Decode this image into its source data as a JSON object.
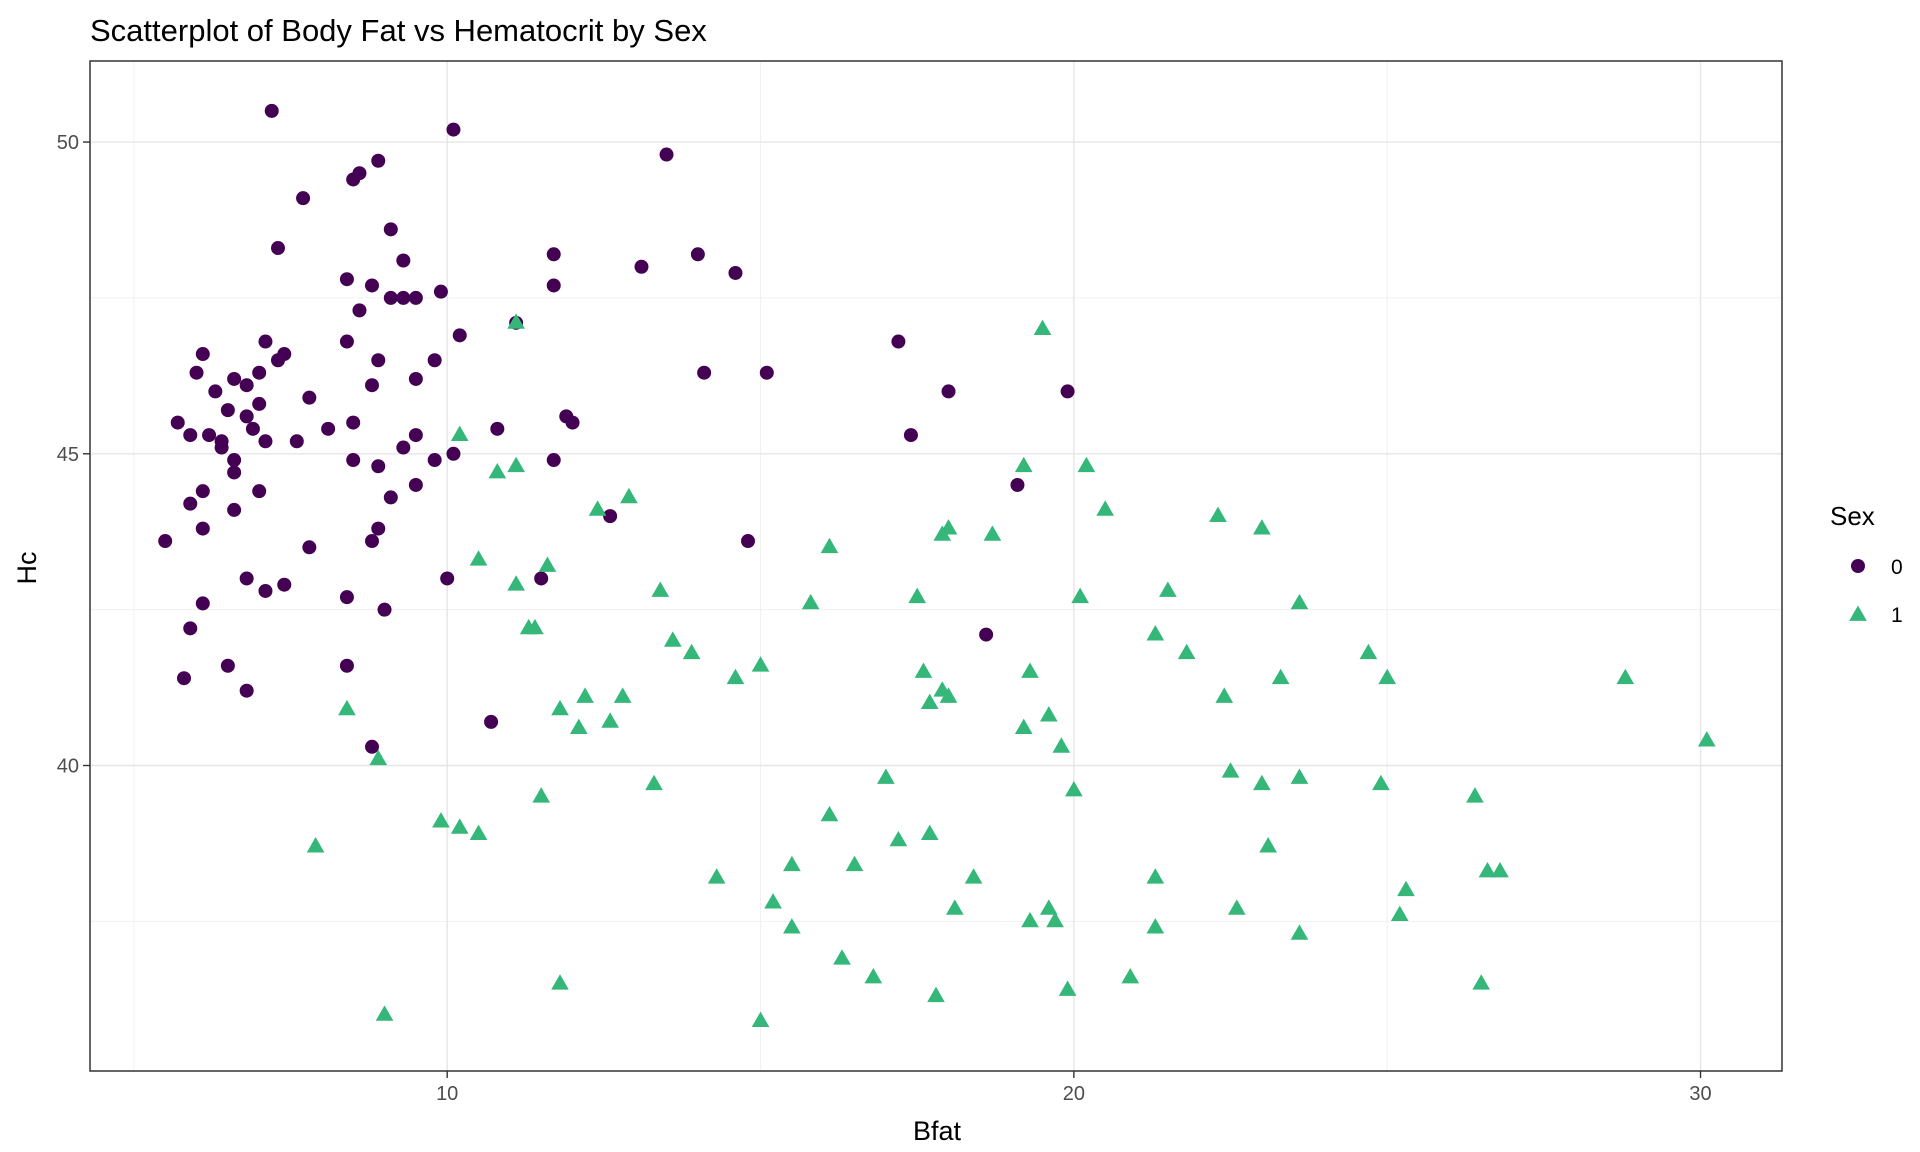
{
  "chart_data": {
    "type": "scatter",
    "title": "Scatterplot of Body Fat vs Hematocrit by Sex",
    "xlabel": "Bfat",
    "ylabel": "Hc",
    "xlim": [
      4.3,
      31.3
    ],
    "ylim": [
      35.1,
      51.3
    ],
    "xticks": [
      10,
      20,
      30
    ],
    "yticks": [
      40,
      45,
      50
    ],
    "xtick_labels": [
      "10",
      "20",
      "30"
    ],
    "ytick_labels": [
      "40",
      "45",
      "50"
    ],
    "grid": true,
    "legend": {
      "title": "Sex",
      "position": "right"
    },
    "series": [
      {
        "name": "0",
        "marker": "circle",
        "color": "#440154",
        "points": [
          [
            7.2,
            50.5
          ],
          [
            10.1,
            50.2
          ],
          [
            13.5,
            49.8
          ],
          [
            8.9,
            49.7
          ],
          [
            8.6,
            49.5
          ],
          [
            8.5,
            49.4
          ],
          [
            7.7,
            49.1
          ],
          [
            9.1,
            48.6
          ],
          [
            7.3,
            48.3
          ],
          [
            11.7,
            48.2
          ],
          [
            14.0,
            48.2
          ],
          [
            9.3,
            48.1
          ],
          [
            13.1,
            48.0
          ],
          [
            14.6,
            47.9
          ],
          [
            8.4,
            47.8
          ],
          [
            8.8,
            47.7
          ],
          [
            11.7,
            47.7
          ],
          [
            9.9,
            47.6
          ],
          [
            9.1,
            47.5
          ],
          [
            9.3,
            47.5
          ],
          [
            9.5,
            47.5
          ],
          [
            8.6,
            47.3
          ],
          [
            11.1,
            47.1
          ],
          [
            10.2,
            46.9
          ],
          [
            8.4,
            46.8
          ],
          [
            7.1,
            46.8
          ],
          [
            17.2,
            46.8
          ],
          [
            6.1,
            46.6
          ],
          [
            7.4,
            46.6
          ],
          [
            7.3,
            46.5
          ],
          [
            8.9,
            46.5
          ],
          [
            9.8,
            46.5
          ],
          [
            6.0,
            46.3
          ],
          [
            7.0,
            46.3
          ],
          [
            14.1,
            46.3
          ],
          [
            15.1,
            46.3
          ],
          [
            6.6,
            46.2
          ],
          [
            6.8,
            46.1
          ],
          [
            9.5,
            46.2
          ],
          [
            8.8,
            46.1
          ],
          [
            6.3,
            46.0
          ],
          [
            18.0,
            46.0
          ],
          [
            19.9,
            46.0
          ],
          [
            7.8,
            45.9
          ],
          [
            7.0,
            45.8
          ],
          [
            6.5,
            45.7
          ],
          [
            6.8,
            45.6
          ],
          [
            11.9,
            45.6
          ],
          [
            12.0,
            45.5
          ],
          [
            5.7,
            45.5
          ],
          [
            8.5,
            45.5
          ],
          [
            10.8,
            45.4
          ],
          [
            6.9,
            45.4
          ],
          [
            8.1,
            45.4
          ],
          [
            5.9,
            45.3
          ],
          [
            6.2,
            45.3
          ],
          [
            17.4,
            45.3
          ],
          [
            9.5,
            45.3
          ],
          [
            6.4,
            45.2
          ],
          [
            7.1,
            45.2
          ],
          [
            7.6,
            45.2
          ],
          [
            6.4,
            45.1
          ],
          [
            9.3,
            45.1
          ],
          [
            10.1,
            45.0
          ],
          [
            6.6,
            44.9
          ],
          [
            8.5,
            44.9
          ],
          [
            9.8,
            44.9
          ],
          [
            11.7,
            44.9
          ],
          [
            8.9,
            44.8
          ],
          [
            6.6,
            44.7
          ],
          [
            9.5,
            44.5
          ],
          [
            19.1,
            44.5
          ],
          [
            6.1,
            44.4
          ],
          [
            7.0,
            44.4
          ],
          [
            9.1,
            44.3
          ],
          [
            5.9,
            44.2
          ],
          [
            6.6,
            44.1
          ],
          [
            12.6,
            44.0
          ],
          [
            6.1,
            43.8
          ],
          [
            8.9,
            43.8
          ],
          [
            5.5,
            43.6
          ],
          [
            8.8,
            43.6
          ],
          [
            14.8,
            43.6
          ],
          [
            7.8,
            43.5
          ],
          [
            10.0,
            43.0
          ],
          [
            11.5,
            43.0
          ],
          [
            6.8,
            43.0
          ],
          [
            7.4,
            42.9
          ],
          [
            7.1,
            42.8
          ],
          [
            8.4,
            42.7
          ],
          [
            6.1,
            42.6
          ],
          [
            9.0,
            42.5
          ],
          [
            5.9,
            42.2
          ],
          [
            18.6,
            42.1
          ],
          [
            6.5,
            41.6
          ],
          [
            8.4,
            41.6
          ],
          [
            5.8,
            41.4
          ],
          [
            6.8,
            41.2
          ],
          [
            10.7,
            40.7
          ],
          [
            8.8,
            40.3
          ]
        ]
      },
      {
        "name": "1",
        "marker": "triangle",
        "color": "#35b779",
        "points": [
          [
            19.5,
            47.0
          ],
          [
            11.1,
            47.1
          ],
          [
            10.2,
            45.3
          ],
          [
            10.8,
            44.7
          ],
          [
            11.1,
            44.8
          ],
          [
            19.2,
            44.8
          ],
          [
            20.2,
            44.8
          ],
          [
            12.9,
            44.3
          ],
          [
            12.4,
            44.1
          ],
          [
            20.5,
            44.1
          ],
          [
            22.3,
            44.0
          ],
          [
            23.0,
            43.8
          ],
          [
            18.0,
            43.8
          ],
          [
            17.9,
            43.7
          ],
          [
            18.7,
            43.7
          ],
          [
            16.1,
            43.5
          ],
          [
            10.5,
            43.3
          ],
          [
            11.6,
            43.2
          ],
          [
            11.1,
            42.9
          ],
          [
            13.4,
            42.8
          ],
          [
            21.5,
            42.8
          ],
          [
            17.5,
            42.7
          ],
          [
            20.1,
            42.7
          ],
          [
            15.8,
            42.6
          ],
          [
            23.6,
            42.6
          ],
          [
            11.3,
            42.2
          ],
          [
            11.4,
            42.2
          ],
          [
            21.3,
            42.1
          ],
          [
            13.6,
            42.0
          ],
          [
            13.9,
            41.8
          ],
          [
            21.8,
            41.8
          ],
          [
            24.7,
            41.8
          ],
          [
            15.0,
            41.6
          ],
          [
            17.6,
            41.5
          ],
          [
            19.3,
            41.5
          ],
          [
            14.6,
            41.4
          ],
          [
            23.3,
            41.4
          ],
          [
            25.0,
            41.4
          ],
          [
            28.8,
            41.4
          ],
          [
            17.9,
            41.2
          ],
          [
            18.0,
            41.1
          ],
          [
            22.4,
            41.1
          ],
          [
            12.2,
            41.1
          ],
          [
            12.8,
            41.1
          ],
          [
            17.7,
            41.0
          ],
          [
            11.8,
            40.9
          ],
          [
            8.4,
            40.9
          ],
          [
            19.6,
            40.8
          ],
          [
            12.6,
            40.7
          ],
          [
            12.1,
            40.6
          ],
          [
            19.2,
            40.6
          ],
          [
            30.1,
            40.4
          ],
          [
            19.8,
            40.3
          ],
          [
            8.9,
            40.1
          ],
          [
            22.5,
            39.9
          ],
          [
            17.0,
            39.8
          ],
          [
            23.6,
            39.8
          ],
          [
            13.3,
            39.7
          ],
          [
            23.0,
            39.7
          ],
          [
            24.9,
            39.7
          ],
          [
            20.0,
            39.6
          ],
          [
            11.5,
            39.5
          ],
          [
            26.4,
            39.5
          ],
          [
            16.1,
            39.2
          ],
          [
            9.9,
            39.1
          ],
          [
            10.2,
            39.0
          ],
          [
            10.5,
            38.9
          ],
          [
            17.7,
            38.9
          ],
          [
            17.2,
            38.8
          ],
          [
            7.9,
            38.7
          ],
          [
            23.1,
            38.7
          ],
          [
            15.5,
            38.4
          ],
          [
            16.5,
            38.4
          ],
          [
            26.6,
            38.3
          ],
          [
            26.8,
            38.3
          ],
          [
            14.3,
            38.2
          ],
          [
            18.4,
            38.2
          ],
          [
            21.3,
            38.2
          ],
          [
            25.3,
            38.0
          ],
          [
            15.2,
            37.8
          ],
          [
            18.1,
            37.7
          ],
          [
            22.6,
            37.7
          ],
          [
            19.6,
            37.7
          ],
          [
            25.2,
            37.6
          ],
          [
            19.3,
            37.5
          ],
          [
            19.7,
            37.5
          ],
          [
            15.5,
            37.4
          ],
          [
            21.3,
            37.4
          ],
          [
            23.6,
            37.3
          ],
          [
            16.3,
            36.9
          ],
          [
            16.8,
            36.6
          ],
          [
            20.9,
            36.6
          ],
          [
            11.8,
            36.5
          ],
          [
            26.5,
            36.5
          ],
          [
            19.9,
            36.4
          ],
          [
            17.8,
            36.3
          ],
          [
            9.0,
            36.0
          ],
          [
            15.0,
            35.9
          ]
        ]
      }
    ]
  }
}
